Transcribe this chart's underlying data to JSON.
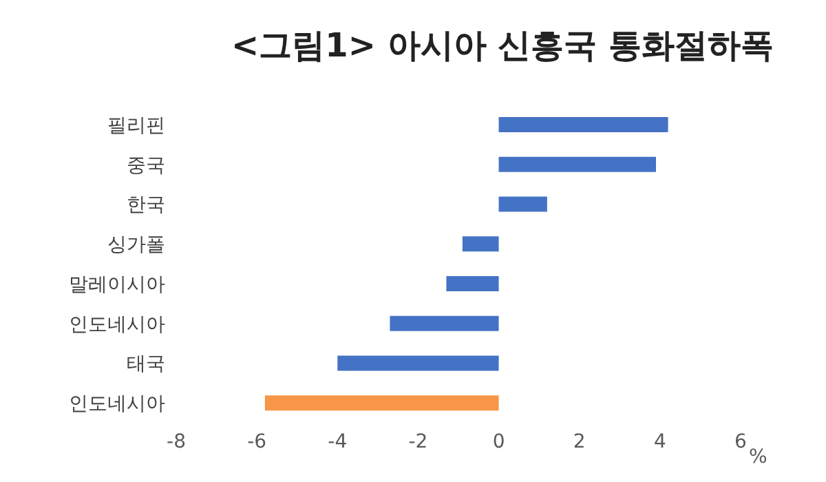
{
  "chart_data": {
    "type": "bar",
    "orientation": "horizontal",
    "title": "<그림1> 아시아 신흥국 통화절하폭",
    "xlabel": "%",
    "categories": [
      "필리핀",
      "중국",
      "한국",
      "싱가폴",
      "말레이시아",
      "인도네시아",
      "태국",
      "인도네시아"
    ],
    "values": [
      4.2,
      3.9,
      1.2,
      -0.9,
      -1.3,
      -2.7,
      -4.0,
      -5.8
    ],
    "colors": [
      "#4472c4",
      "#4472c4",
      "#4472c4",
      "#4472c4",
      "#4472c4",
      "#4472c4",
      "#4472c4",
      "#f79646"
    ],
    "xlim": [
      -8,
      6
    ],
    "xticks": [
      -8,
      -6,
      -4,
      -2,
      0,
      2,
      4,
      6
    ],
    "grid": false,
    "legend": false
  }
}
